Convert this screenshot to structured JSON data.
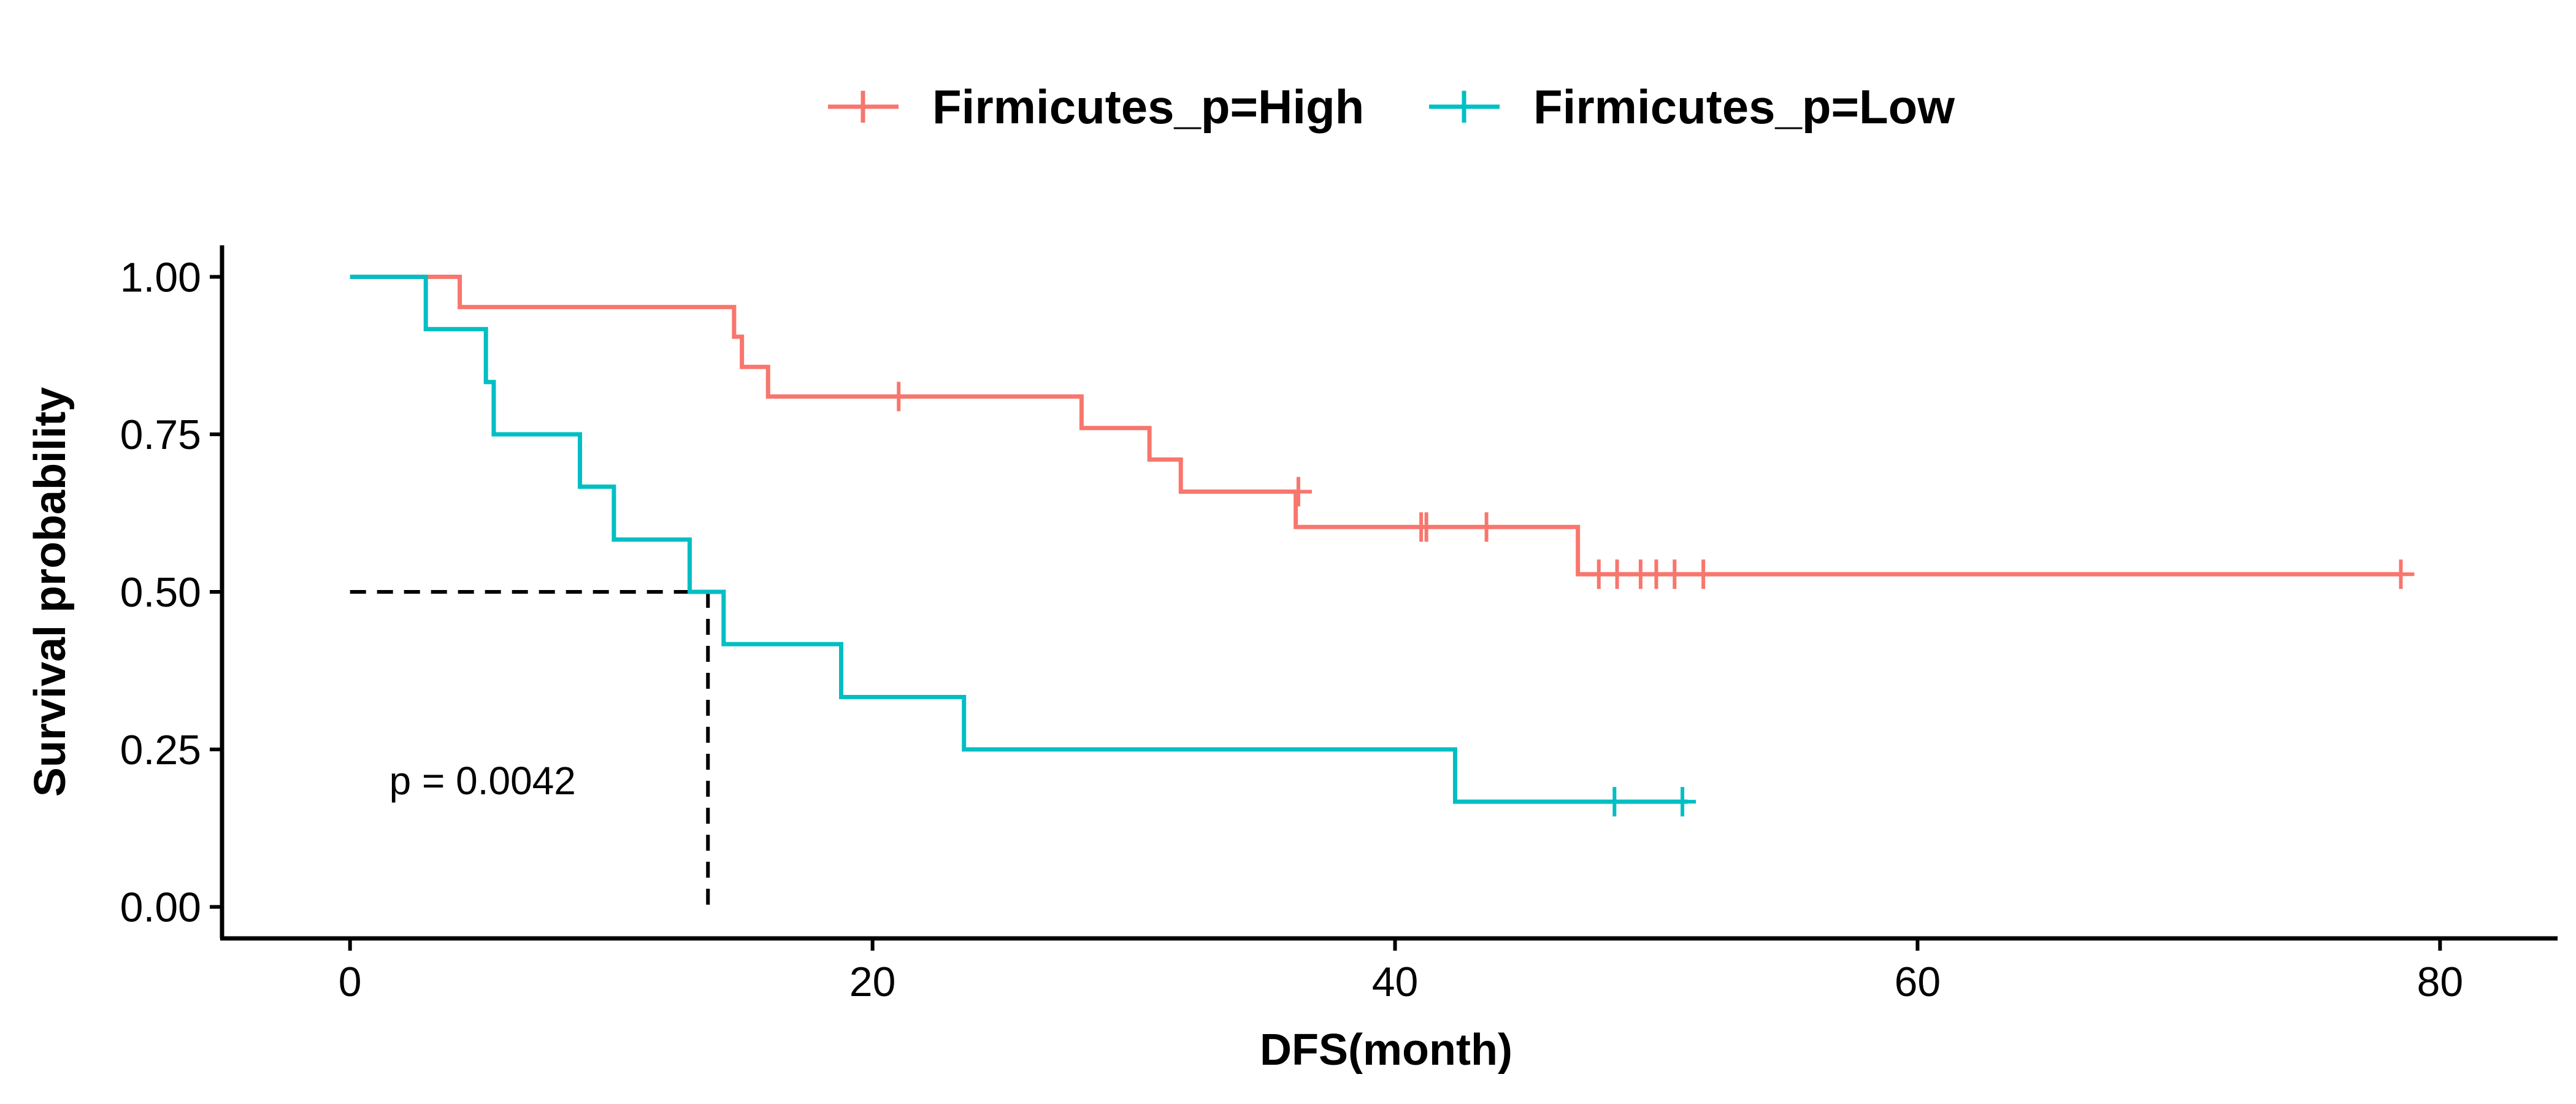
{
  "chart_data": {
    "type": "line",
    "subtype": "kaplan-meier",
    "xlabel": "DFS(month)",
    "ylabel": "Survival probability",
    "xlim": [
      -4.9,
      84.5
    ],
    "ylim": [
      -0.05,
      1.05
    ],
    "x_ticks": [
      0,
      20,
      40,
      60,
      80
    ],
    "x_tick_labels": [
      "0",
      "20",
      "40",
      "60",
      "80"
    ],
    "y_ticks": [
      0,
      0.25,
      0.5,
      0.75,
      1.0
    ],
    "y_tick_labels": [
      "0.00",
      "0.25",
      "0.50",
      "0.75",
      "1.00"
    ],
    "grid": false,
    "legend_position": "top",
    "series": [
      {
        "name": "Firmicutes_p=High",
        "color": "#F8766D",
        "steps": [
          [
            0,
            1.0
          ],
          [
            4.2,
            0.952
          ],
          [
            14.7,
            0.905
          ],
          [
            15.0,
            0.857
          ],
          [
            16.0,
            0.81
          ],
          [
            28.0,
            0.76
          ],
          [
            30.6,
            0.71
          ],
          [
            31.8,
            0.659
          ],
          [
            36.2,
            0.603
          ],
          [
            47.0,
            0.528
          ],
          [
            78.5,
            0.528
          ]
        ],
        "censors": [
          [
            21.0,
            0.81
          ],
          [
            36.3,
            0.659
          ],
          [
            41.0,
            0.603
          ],
          [
            41.2,
            0.603
          ],
          [
            43.5,
            0.603
          ],
          [
            47.8,
            0.528
          ],
          [
            48.5,
            0.528
          ],
          [
            49.4,
            0.528
          ],
          [
            50.0,
            0.528
          ],
          [
            50.7,
            0.528
          ],
          [
            51.8,
            0.528
          ],
          [
            78.5,
            0.528
          ]
        ]
      },
      {
        "name": "Firmicutes_p=Low",
        "color": "#00BFC4",
        "steps": [
          [
            0,
            1.0
          ],
          [
            2.9,
            0.917
          ],
          [
            5.2,
            0.833
          ],
          [
            5.5,
            0.75
          ],
          [
            8.8,
            0.667
          ],
          [
            10.1,
            0.583
          ],
          [
            13.0,
            0.5
          ],
          [
            14.3,
            0.417
          ],
          [
            18.8,
            0.333
          ],
          [
            23.5,
            0.25
          ],
          [
            42.3,
            0.167
          ],
          [
            51.2,
            0.167
          ]
        ],
        "censors": [
          [
            48.4,
            0.167
          ],
          [
            51.0,
            0.167
          ]
        ]
      }
    ],
    "median_line": {
      "x": 13.7,
      "y": 0.5
    },
    "annotations": [
      {
        "text": "p = 0.0042",
        "x": 1.5,
        "y": 0.2
      }
    ]
  }
}
